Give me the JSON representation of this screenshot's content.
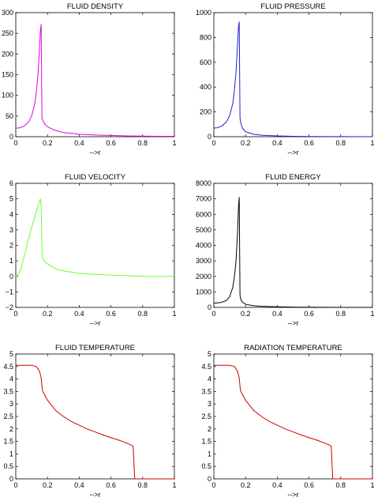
{
  "chart_data": [
    {
      "type": "line",
      "title": "FLUID DENSITY",
      "xlabel": "-->r",
      "ylabel": "",
      "xlim": [
        0,
        1
      ],
      "ylim": [
        0,
        300
      ],
      "xticks": [
        0,
        0.2,
        0.4,
        0.6,
        0.8,
        1
      ],
      "xtick_labels": [
        "0",
        "0.2",
        "0.4",
        "0.6",
        "0.8",
        "1"
      ],
      "yticks": [
        0,
        50,
        100,
        150,
        200,
        250,
        300
      ],
      "ytick_labels": [
        "0",
        "50",
        "100",
        "150",
        "200",
        "250",
        "300"
      ],
      "color": "#e000e0",
      "series": [
        {
          "x": [
            0,
            0.02,
            0.05,
            0.08,
            0.1,
            0.12,
            0.13,
            0.14,
            0.15,
            0.155,
            0.16,
            0.165,
            0.17,
            0.18,
            0.2,
            0.25,
            0.3,
            0.4,
            0.5,
            0.6,
            0.7,
            0.8,
            0.9,
            1.0
          ],
          "y": [
            21,
            21,
            25,
            35,
            50,
            80,
            110,
            150,
            215,
            255,
            272,
            45,
            40,
            32,
            24,
            15,
            10,
            6,
            4,
            3,
            2,
            1.5,
            1,
            1
          ]
        }
      ]
    },
    {
      "type": "line",
      "title": "FLUID PRESSURE",
      "xlabel": "-->r",
      "ylabel": "",
      "xlim": [
        0,
        1
      ],
      "ylim": [
        0,
        1000
      ],
      "xticks": [
        0,
        0.2,
        0.4,
        0.6,
        0.8,
        1
      ],
      "xtick_labels": [
        "0",
        "0.2",
        "0.4",
        "0.6",
        "0.8",
        "1"
      ],
      "yticks": [
        0,
        200,
        400,
        600,
        800,
        1000
      ],
      "ytick_labels": [
        "0",
        "200",
        "400",
        "600",
        "800",
        "1000"
      ],
      "color": "#2020d0",
      "series": [
        {
          "x": [
            0,
            0.02,
            0.05,
            0.08,
            0.1,
            0.12,
            0.13,
            0.14,
            0.15,
            0.155,
            0.16,
            0.165,
            0.17,
            0.18,
            0.2,
            0.25,
            0.3,
            0.4,
            0.5,
            0.6,
            0.7,
            0.8,
            0.9,
            1.0
          ],
          "y": [
            70,
            72,
            85,
            120,
            170,
            270,
            380,
            520,
            750,
            880,
            925,
            150,
            110,
            70,
            40,
            20,
            12,
            6,
            3,
            2,
            1,
            1,
            0,
            0
          ]
        }
      ]
    },
    {
      "type": "line",
      "title": "FLUID VELOCITY",
      "xlabel": "-->r",
      "ylabel": "",
      "xlim": [
        0,
        1
      ],
      "ylim": [
        -2,
        6
      ],
      "xticks": [
        0,
        0.2,
        0.4,
        0.6,
        0.8,
        1
      ],
      "xtick_labels": [
        "0",
        "0.2",
        "0.4",
        "0.6",
        "0.8",
        "1"
      ],
      "yticks": [
        -2,
        -1,
        0,
        1,
        2,
        3,
        4,
        5,
        6
      ],
      "ytick_labels": [
        "−2",
        "−1",
        "0",
        "1",
        "2",
        "3",
        "4",
        "5",
        "6"
      ],
      "color": "#66ff33",
      "series": [
        {
          "x": [
            0,
            0.01,
            0.03,
            0.05,
            0.07,
            0.09,
            0.11,
            0.13,
            0.145,
            0.155,
            0.16,
            0.165,
            0.17,
            0.2,
            0.25,
            0.3,
            0.4,
            0.5,
            0.6,
            0.7,
            0.75,
            0.8,
            0.9,
            1.0
          ],
          "y": [
            0,
            0.05,
            0.4,
            1.2,
            2.0,
            2.8,
            3.5,
            4.2,
            4.7,
            5.0,
            4.6,
            1.8,
            1.1,
            0.8,
            0.5,
            0.35,
            0.2,
            0.12,
            0.08,
            0.05,
            0.02,
            0.0,
            0.0,
            0.0
          ]
        }
      ]
    },
    {
      "type": "line",
      "title": "FLUID ENERGY",
      "xlabel": "-->r",
      "ylabel": "",
      "xlim": [
        0,
        1
      ],
      "ylim": [
        0,
        8000
      ],
      "xticks": [
        0,
        0.2,
        0.4,
        0.6,
        0.8,
        1
      ],
      "xtick_labels": [
        "0",
        "0.2",
        "0.4",
        "0.6",
        "0.8",
        "1"
      ],
      "yticks": [
        0,
        1000,
        2000,
        3000,
        4000,
        5000,
        6000,
        7000,
        8000
      ],
      "ytick_labels": [
        "0",
        "1000",
        "2000",
        "3000",
        "4000",
        "5000",
        "6000",
        "7000",
        "8000"
      ],
      "color": "#000000",
      "series": [
        {
          "x": [
            0,
            0.02,
            0.05,
            0.08,
            0.1,
            0.12,
            0.13,
            0.14,
            0.15,
            0.155,
            0.16,
            0.165,
            0.17,
            0.18,
            0.2,
            0.25,
            0.3,
            0.4,
            0.5,
            0.6,
            0.7,
            0.8,
            0.9,
            1.0
          ],
          "y": [
            280,
            285,
            330,
            450,
            700,
            1300,
            2000,
            3000,
            4900,
            6400,
            7100,
            800,
            500,
            350,
            200,
            110,
            70,
            40,
            20,
            10,
            5,
            2,
            0,
            0
          ]
        }
      ]
    },
    {
      "type": "line",
      "title": "FLUID TEMPERATURE",
      "xlabel": "-->r",
      "ylabel": "",
      "xlim": [
        0,
        1
      ],
      "ylim": [
        0,
        5
      ],
      "xticks": [
        0,
        0.2,
        0.4,
        0.6,
        0.8,
        1
      ],
      "xtick_labels": [
        "0",
        "0.2",
        "0.4",
        "0.6",
        "0.8",
        "1"
      ],
      "yticks": [
        0,
        0.5,
        1,
        1.5,
        2,
        2.5,
        3,
        3.5,
        4,
        4.5,
        5
      ],
      "ytick_labels": [
        "0",
        "0.5",
        "1",
        "1.5",
        "2",
        "2.5",
        "3",
        "3.5",
        "4",
        "4.5",
        "5"
      ],
      "color": "#cc0000",
      "series": [
        {
          "x": [
            0,
            0.1,
            0.13,
            0.15,
            0.16,
            0.165,
            0.17,
            0.2,
            0.25,
            0.3,
            0.35,
            0.4,
            0.45,
            0.5,
            0.55,
            0.6,
            0.65,
            0.7,
            0.73,
            0.74,
            0.75,
            0.8,
            0.9,
            1.0
          ],
          "y": [
            4.55,
            4.55,
            4.5,
            4.3,
            4.05,
            3.7,
            3.5,
            3.15,
            2.75,
            2.5,
            2.3,
            2.15,
            2.0,
            1.88,
            1.76,
            1.65,
            1.55,
            1.43,
            1.35,
            1.3,
            0.0,
            0.0,
            0.0,
            0.0
          ]
        }
      ]
    },
    {
      "type": "line",
      "title": "RADIATION TEMPERATURE",
      "xlabel": "-->r",
      "ylabel": "",
      "xlim": [
        0,
        1
      ],
      "ylim": [
        0,
        5
      ],
      "xticks": [
        0,
        0.2,
        0.4,
        0.6,
        0.8,
        1
      ],
      "xtick_labels": [
        "0",
        "0.2",
        "0.4",
        "0.6",
        "0.8",
        "1"
      ],
      "yticks": [
        0,
        0.5,
        1,
        1.5,
        2,
        2.5,
        3,
        3.5,
        4,
        4.5,
        5
      ],
      "ytick_labels": [
        "0",
        "0.5",
        "1",
        "1.5",
        "2",
        "2.5",
        "3",
        "3.5",
        "4",
        "4.5",
        "5"
      ],
      "color": "#cc0000",
      "series": [
        {
          "x": [
            0,
            0.1,
            0.13,
            0.15,
            0.16,
            0.165,
            0.17,
            0.2,
            0.25,
            0.3,
            0.35,
            0.4,
            0.45,
            0.5,
            0.55,
            0.6,
            0.65,
            0.7,
            0.73,
            0.74,
            0.75,
            0.8,
            0.9,
            1.0
          ],
          "y": [
            4.55,
            4.55,
            4.5,
            4.3,
            4.05,
            3.7,
            3.5,
            3.15,
            2.75,
            2.5,
            2.3,
            2.15,
            2.0,
            1.88,
            1.76,
            1.65,
            1.55,
            1.43,
            1.35,
            1.3,
            0.0,
            0.0,
            0.0,
            0.0
          ]
        }
      ]
    }
  ]
}
